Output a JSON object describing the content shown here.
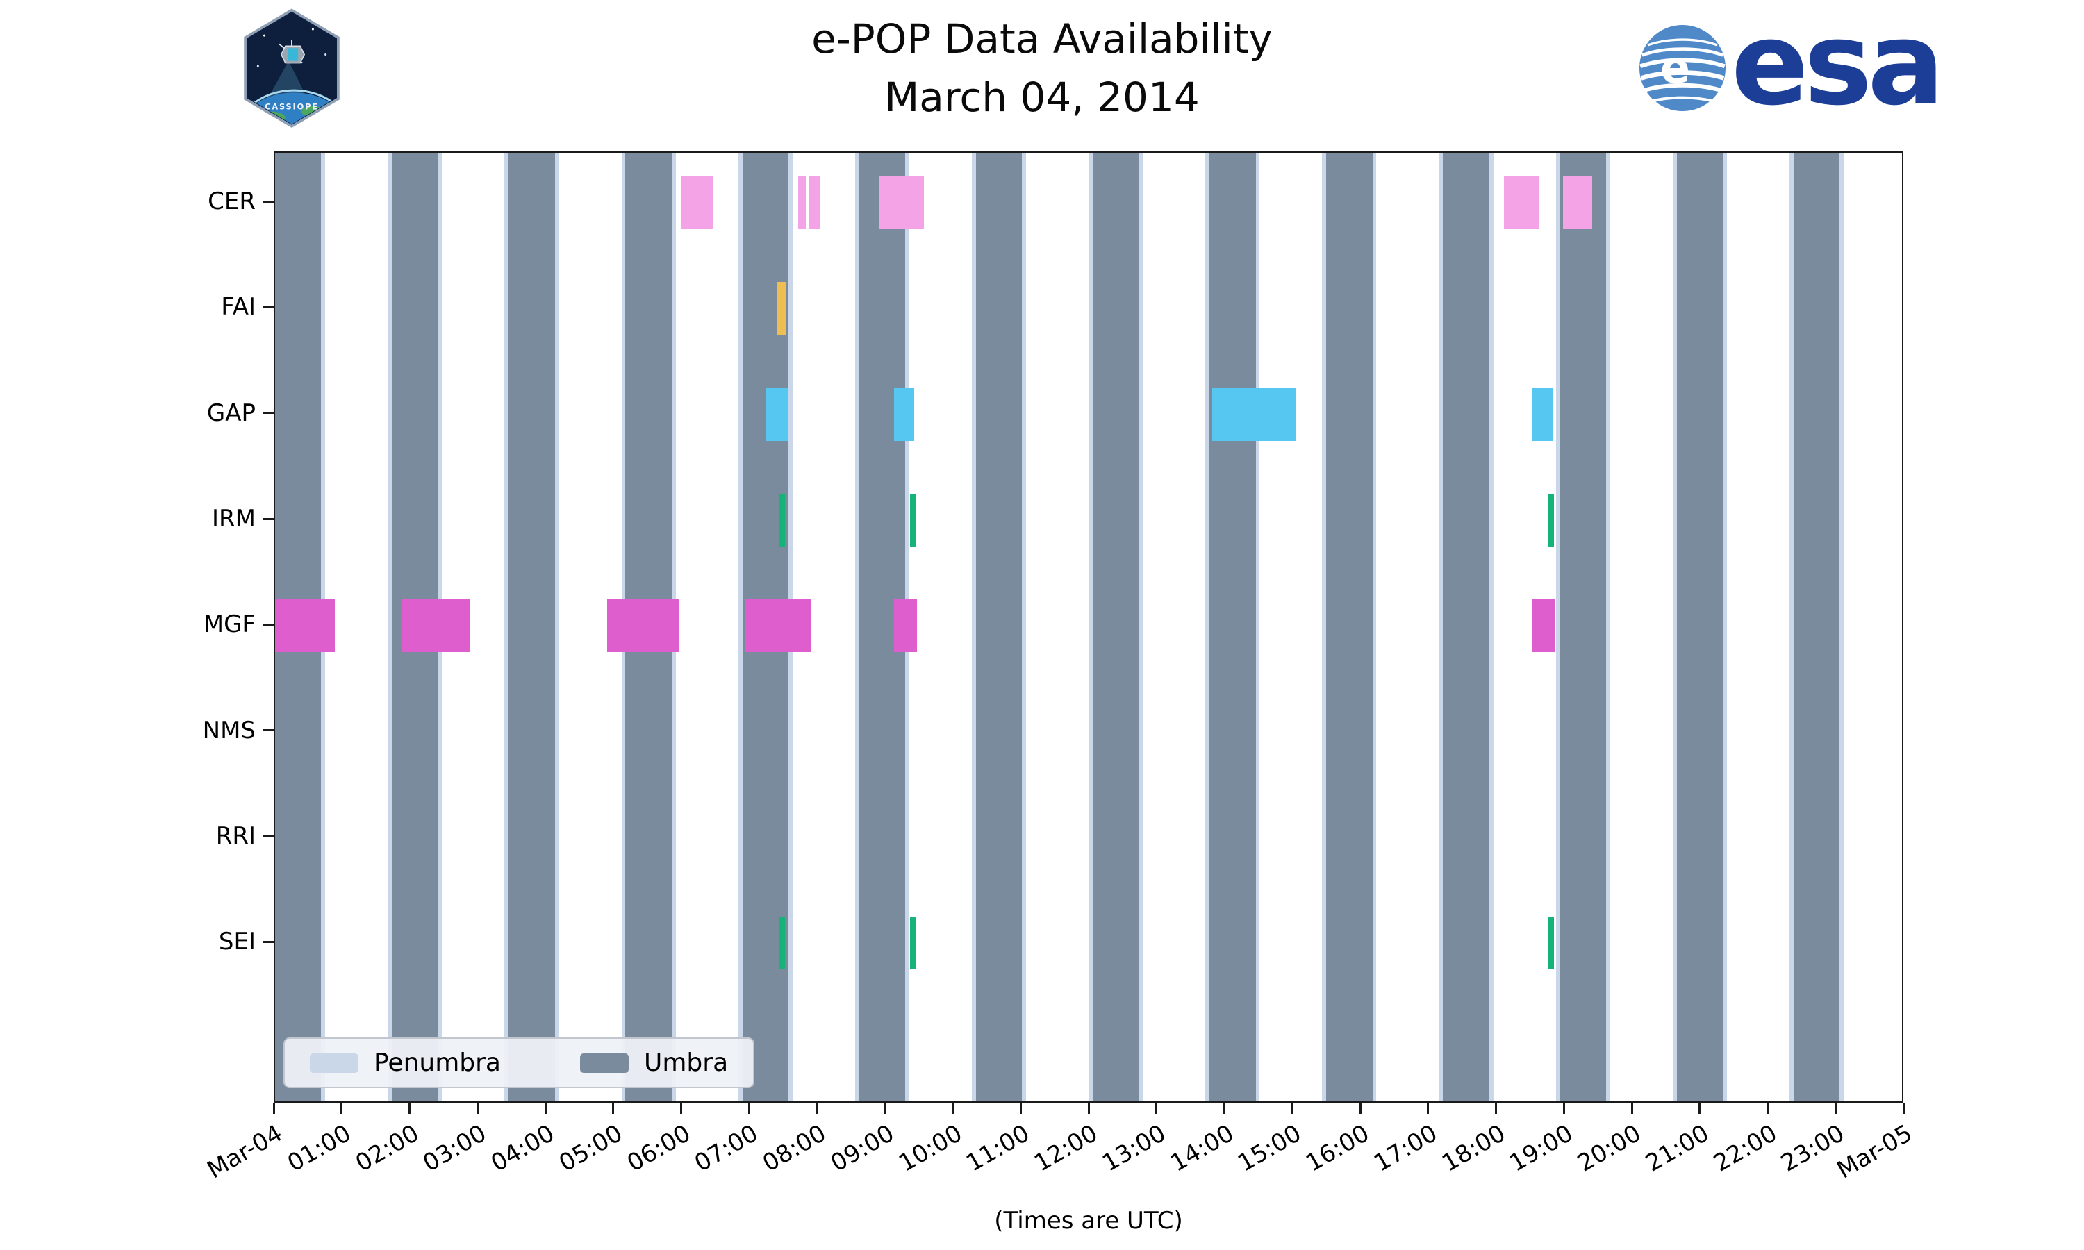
{
  "header": {
    "title": "e-POP Data Availability",
    "subtitle": "March 04, 2014"
  },
  "branding": {
    "cassiope_label": "CASSIOPE",
    "esa_label": "esa"
  },
  "chart_data": {
    "type": "timeline",
    "title": "e-POP Data Availability",
    "subtitle": "March 04, 2014",
    "caption": "(Times are UTC)",
    "x_axis": {
      "range_hours": [
        0,
        24
      ],
      "tick_labels": [
        "Mar-04",
        "01:00",
        "02:00",
        "03:00",
        "04:00",
        "05:00",
        "06:00",
        "07:00",
        "08:00",
        "09:00",
        "10:00",
        "11:00",
        "12:00",
        "13:00",
        "14:00",
        "15:00",
        "16:00",
        "17:00",
        "18:00",
        "19:00",
        "20:00",
        "21:00",
        "22:00",
        "23:00",
        "Mar-05"
      ]
    },
    "rows": [
      "CER",
      "FAI",
      "GAP",
      "IRM",
      "MGF",
      "NMS",
      "RRI",
      "SEI"
    ],
    "umbra": {
      "label": "Umbra",
      "color": "#7b8b9e",
      "intervals_hours": [
        [
          0.0,
          0.68
        ],
        [
          1.72,
          2.4
        ],
        [
          3.44,
          4.12
        ],
        [
          5.16,
          5.84
        ],
        [
          6.88,
          7.56
        ],
        [
          8.6,
          9.28
        ],
        [
          10.32,
          11.0
        ],
        [
          12.04,
          12.72
        ],
        [
          13.76,
          14.44
        ],
        [
          15.48,
          16.16
        ],
        [
          17.2,
          17.88
        ],
        [
          18.92,
          19.6
        ],
        [
          20.64,
          21.32
        ],
        [
          22.36,
          23.04
        ]
      ]
    },
    "penumbra": {
      "label": "Penumbra",
      "color": "#c9d7e8",
      "edge_width_hours": 0.06
    },
    "series": [
      {
        "name": "CER",
        "color": "#f4a4e6",
        "intervals_hours": [
          [
            5.98,
            6.45
          ],
          [
            7.7,
            7.82
          ],
          [
            7.86,
            8.02
          ],
          [
            8.9,
            9.55
          ],
          [
            18.1,
            18.61
          ],
          [
            18.97,
            19.4
          ]
        ]
      },
      {
        "name": "FAI",
        "color": "#eebe55",
        "intervals_hours": [
          [
            7.4,
            7.52
          ]
        ]
      },
      {
        "name": "GAP",
        "color": "#56c7f0",
        "intervals_hours": [
          [
            7.23,
            7.56
          ],
          [
            9.11,
            9.41
          ],
          [
            13.8,
            15.03
          ],
          [
            18.51,
            18.81
          ]
        ]
      },
      {
        "name": "IRM",
        "color": "#16b379",
        "intervals_hours": [
          [
            7.43,
            7.51
          ],
          [
            9.35,
            9.43
          ],
          [
            18.75,
            18.83
          ]
        ]
      },
      {
        "name": "MGF",
        "color": "#de5ecd",
        "intervals_hours": [
          [
            0.0,
            0.88
          ],
          [
            1.86,
            2.87
          ],
          [
            4.89,
            5.94
          ],
          [
            6.93,
            7.9
          ],
          [
            9.11,
            9.45
          ],
          [
            18.51,
            18.85
          ]
        ]
      },
      {
        "name": "NMS",
        "color": "#cccccc",
        "intervals_hours": []
      },
      {
        "name": "RRI",
        "color": "#cccccc",
        "intervals_hours": []
      },
      {
        "name": "SEI",
        "color": "#16b379",
        "intervals_hours": [
          [
            7.43,
            7.51
          ],
          [
            9.35,
            9.43
          ],
          [
            18.75,
            18.83
          ]
        ]
      }
    ],
    "legend": {
      "position": "lower left",
      "items": [
        {
          "label": "Penumbra",
          "color": "#c9d7e8"
        },
        {
          "label": "Umbra",
          "color": "#7b8b9e"
        }
      ]
    },
    "layout": {
      "row_top_frac": 0.0526,
      "row_spacing_frac": 0.1112,
      "grid": false,
      "background": "#ffffff"
    }
  }
}
